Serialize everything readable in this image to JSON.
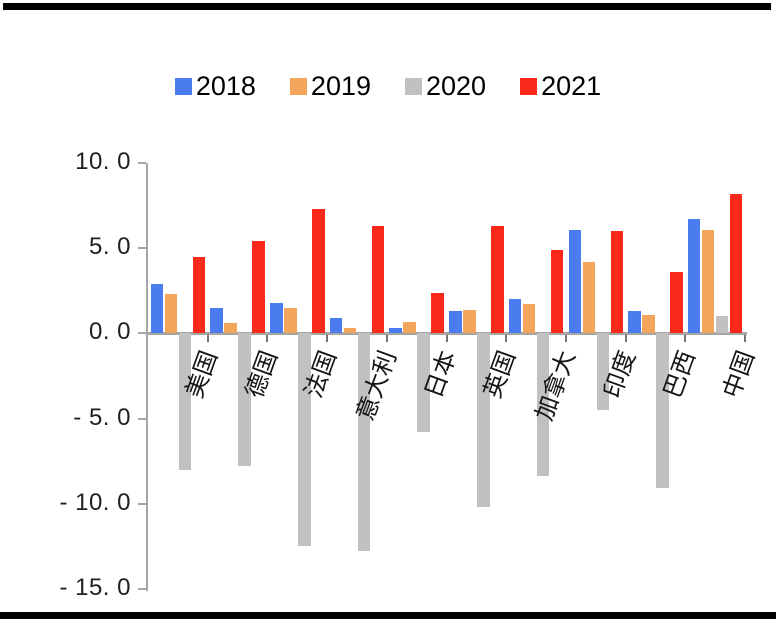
{
  "figure": {
    "title": "",
    "background": "#ffffff",
    "divider_color": "#000000"
  },
  "legend": {
    "position": "top",
    "items": [
      "2018",
      "2019",
      "2020",
      "2021"
    ]
  },
  "chart_data": {
    "type": "bar",
    "title": "",
    "xlabel": "",
    "ylabel": "",
    "categories": [
      "美国",
      "德国",
      "法国",
      "意大利",
      "日本",
      "英国",
      "加拿大",
      "印度",
      "巴西",
      "中国"
    ],
    "series": [
      {
        "name": "2018",
        "color": "#4a7cf0",
        "values": [
          2.9,
          1.5,
          1.8,
          0.9,
          0.3,
          1.3,
          2.0,
          6.1,
          1.3,
          6.7
        ]
      },
      {
        "name": "2019",
        "color": "#f3a55c",
        "values": [
          2.3,
          0.6,
          1.5,
          0.3,
          0.7,
          1.4,
          1.7,
          4.2,
          1.1,
          6.1
        ]
      },
      {
        "name": "2020",
        "color": "#c1c1c1",
        "values": [
          -8.0,
          -7.8,
          -12.5,
          -12.8,
          -5.8,
          -10.2,
          -8.4,
          -4.5,
          -9.1,
          1.0
        ]
      },
      {
        "name": "2021",
        "color": "#f92a1b",
        "values": [
          4.5,
          5.4,
          7.3,
          6.3,
          2.4,
          6.3,
          4.9,
          6.0,
          3.6,
          8.2
        ]
      }
    ],
    "ylim": [
      -15,
      10
    ],
    "yticks": [
      {
        "value": 10,
        "label": "10. 0"
      },
      {
        "value": 5,
        "label": "5. 0"
      },
      {
        "value": 0,
        "label": "0. 0"
      },
      {
        "value": -5,
        "label": "- 5. 0"
      },
      {
        "value": -10,
        "label": "- 10. 0"
      },
      {
        "value": -15,
        "label": "- 15. 0"
      }
    ],
    "grid": false,
    "legend_position": "top",
    "axis_color": "#a6a6a6"
  }
}
